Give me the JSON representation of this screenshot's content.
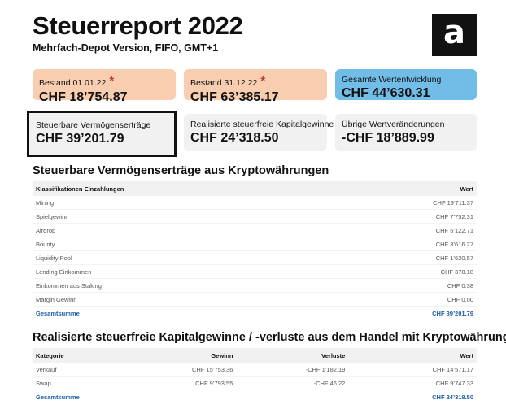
{
  "header": {
    "title": "Steuerreport 2022",
    "subtitle": "Mehrfach-Depot Version, FIFO, GMT+1",
    "logo_letter": "a"
  },
  "cards": [
    {
      "label": "Bestand 01.01.22",
      "value": "CHF 18’754.87",
      "star": "*",
      "color": "#f8cdb0"
    },
    {
      "label": "Bestand 31.12.22",
      "value": "CHF 63’385.17",
      "star": "*",
      "color": "#f8cdb0"
    },
    {
      "label": "Gesamte Wertentwicklung",
      "value": "CHF 44’630.31",
      "color": "#72bde8"
    },
    {
      "label": "Steuerbare Vermögenserträge",
      "value": "CHF 39’201.79",
      "color": "#f1f1f1"
    },
    {
      "label": "Realisierte steuerfreie Kapitalgewinne",
      "value": "CHF 24’318.50",
      "color": "#f1f1f1"
    },
    {
      "label": "Übrige Wertveränderungen",
      "value": "-CHF 18’889.99",
      "color": "#f1f1f1"
    }
  ],
  "section1": {
    "title": "Steuerbare Vermögenserträge aus Kryptowährungen",
    "headers": [
      "Klassifikationen Einzahlungen",
      "Wert"
    ],
    "rows": [
      {
        "name": "Mining",
        "value": "CHF 19’711.37"
      },
      {
        "name": "Spielgewinn",
        "value": "CHF 7’752.31"
      },
      {
        "name": "Airdrop",
        "value": "CHF 6’122.71"
      },
      {
        "name": "Bounty",
        "value": "CHF 3’616.27"
      },
      {
        "name": "Liquidity Pool",
        "value": "CHF 1’620.57"
      },
      {
        "name": "Lending Einkommen",
        "value": "CHF 378.18"
      },
      {
        "name": "Einkommen aus Staking",
        "value": "CHF 0.38"
      },
      {
        "name": "Margin Gewinn",
        "value": "CHF 0.00"
      }
    ],
    "total": {
      "name": "Gesamtsumme",
      "value": "CHF 39’201.79"
    }
  },
  "section2": {
    "title": "Realisierte steuerfreie Kapitalgewinne / -verluste aus dem Handel mit Kryptowährungen",
    "headers": [
      "Kategorie",
      "Gewinn",
      "Verluste",
      "Wert"
    ],
    "rows": [
      {
        "name": "Verkauf",
        "gain": "CHF 15’753.36",
        "loss": "-CHF 1’182.19",
        "value": "CHF 14’571.17"
      },
      {
        "name": "Swap",
        "gain": "CHF 9’793.55",
        "loss": "-CHF 46.22",
        "value": "CHF 9’747.33"
      }
    ],
    "total": {
      "name": "Gesamtsumme",
      "value": "CHF 24’318.50"
    }
  },
  "colors": {
    "peach": "#f8cdb0",
    "blue": "#72bde8",
    "grey": "#f1f1f1",
    "total_link": "#1a5fa8",
    "star": "#c0392b"
  }
}
